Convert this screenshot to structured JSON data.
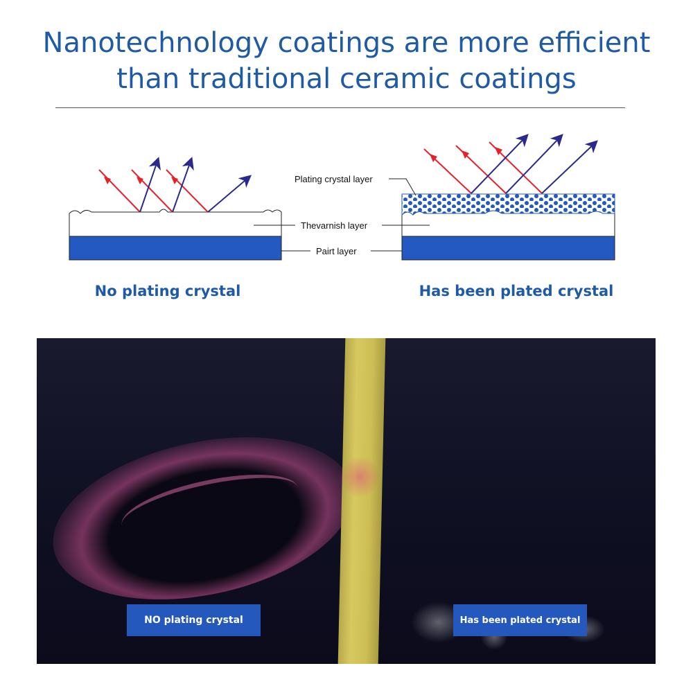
{
  "header": {
    "title_line1": "Nanotechnology coatings are more efficient",
    "title_line2": "than traditional ceramic coatings"
  },
  "diagram": {
    "labels": {
      "plating_crystal_layer": "Plating crystal layer",
      "varnish_layer": "Thevarnish layer",
      "paint_layer": "Pairt layer"
    },
    "captions": {
      "left": "No plating crystal",
      "right": "Has been plated crystal"
    },
    "colors": {
      "incoming_ray": "#e8202a",
      "reflected_ray": "#2a2a8c",
      "paint": "#2359c0",
      "title": "#1f5aa6"
    }
  },
  "photo": {
    "label_left": "NO plating crystal",
    "label_right": "Has been plated crystal"
  }
}
